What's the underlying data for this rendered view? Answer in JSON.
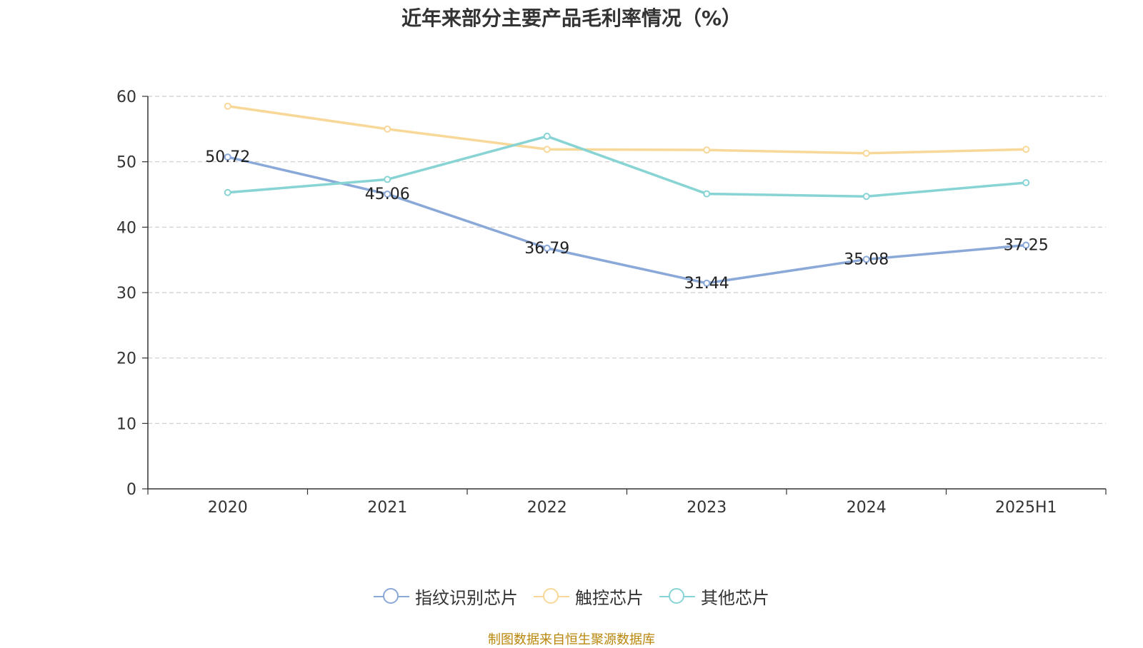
{
  "chart_data": {
    "type": "line",
    "title": "近年来部分主要产品毛利率情况（%）",
    "xlabel": "",
    "ylabel": "",
    "categories": [
      "2020",
      "2021",
      "2022",
      "2023",
      "2024",
      "2025H1"
    ],
    "ylim": [
      0,
      60
    ],
    "yticks": [
      0,
      10,
      20,
      30,
      40,
      50,
      60
    ],
    "grid": true,
    "legend_position": "bottom",
    "series": [
      {
        "name": "指纹识别芯片",
        "color": "#8aa8d8",
        "values": [
          50.72,
          45.06,
          36.79,
          31.44,
          35.08,
          37.25
        ],
        "show_labels": true
      },
      {
        "name": "触控芯片",
        "color": "#f8d898",
        "values": [
          58.5,
          55.0,
          51.9,
          51.8,
          51.3,
          51.9
        ],
        "show_labels": false
      },
      {
        "name": "其他芯片",
        "color": "#88d4d4",
        "values": [
          45.3,
          47.3,
          53.9,
          45.1,
          44.7,
          46.8
        ],
        "show_labels": false
      }
    ],
    "source": "制图数据来自恒生聚源数据库"
  }
}
